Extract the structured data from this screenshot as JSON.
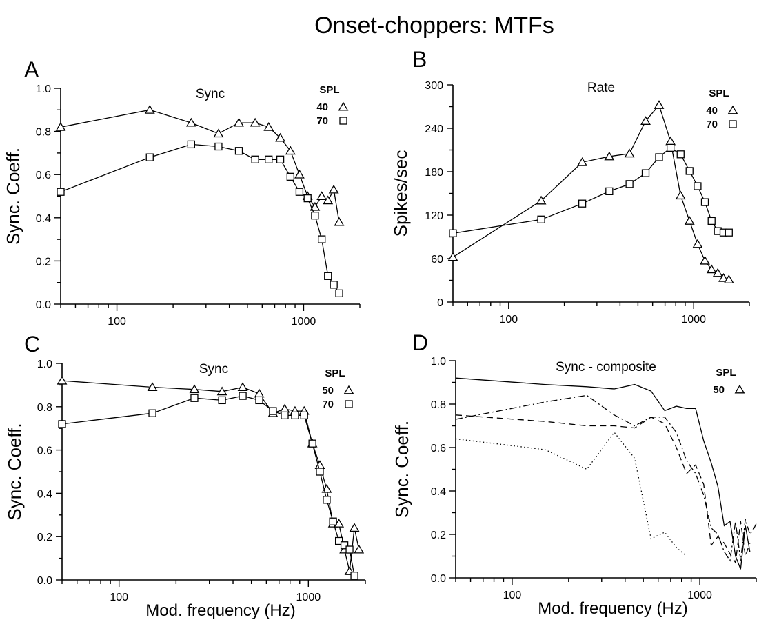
{
  "figure": {
    "title": "Onset-choppers: MTFs"
  },
  "chart_data": [
    {
      "panel": "A",
      "type": "line",
      "title": "Sync",
      "xscale": "log",
      "xlim": [
        50,
        2000
      ],
      "xticks": [
        100,
        1000
      ],
      "ylim": [
        0,
        1
      ],
      "yticks": [
        0,
        0.2,
        0.4,
        0.6,
        0.8,
        1
      ],
      "ytick_labels": [
        "0.0",
        "0.2",
        "0.4",
        "0.6",
        "0.8",
        "1.0"
      ],
      "xlabel": "",
      "ylabel": "Sync. Coeff.",
      "legend_title": "SPL",
      "legend_position": "top-right",
      "series": [
        {
          "name": "40",
          "marker": "triangle",
          "style": "solid",
          "x": [
            50,
            150,
            250,
            350,
            450,
            550,
            650,
            750,
            850,
            950,
            1050,
            1150,
            1250,
            1350,
            1450,
            1550
          ],
          "y": [
            0.82,
            0.9,
            0.84,
            0.79,
            0.84,
            0.84,
            0.82,
            0.77,
            0.71,
            0.6,
            0.5,
            0.45,
            0.5,
            0.48,
            0.53,
            0.38
          ]
        },
        {
          "name": "70",
          "marker": "square",
          "style": "solid",
          "x": [
            50,
            150,
            250,
            350,
            450,
            550,
            650,
            750,
            850,
            950,
            1050,
            1150,
            1250,
            1350,
            1450,
            1550
          ],
          "y": [
            0.52,
            0.68,
            0.74,
            0.73,
            0.71,
            0.67,
            0.67,
            0.67,
            0.59,
            0.52,
            0.49,
            0.41,
            0.3,
            0.13,
            0.09,
            0.05
          ]
        }
      ]
    },
    {
      "panel": "B",
      "type": "line",
      "title": "Rate",
      "xscale": "log",
      "xlim": [
        50,
        2000
      ],
      "xticks": [
        100,
        1000
      ],
      "ylim": [
        0,
        300
      ],
      "yticks": [
        0,
        60,
        120,
        180,
        240,
        300
      ],
      "ytick_labels": [
        "0",
        "60",
        "120",
        "180",
        "240",
        "300"
      ],
      "xlabel": "",
      "ylabel": "Spikes/sec",
      "legend_title": "SPL",
      "legend_position": "top-right",
      "series": [
        {
          "name": "40",
          "marker": "triangle",
          "style": "solid",
          "x": [
            50,
            150,
            250,
            350,
            450,
            550,
            650,
            750,
            850,
            950,
            1050,
            1150,
            1250,
            1350,
            1450,
            1550
          ],
          "y": [
            62,
            140,
            193,
            201,
            205,
            250,
            272,
            222,
            147,
            112,
            80,
            57,
            45,
            40,
            33,
            31
          ]
        },
        {
          "name": "70",
          "marker": "square",
          "style": "solid",
          "x": [
            50,
            150,
            250,
            350,
            450,
            550,
            650,
            750,
            850,
            950,
            1050,
            1150,
            1250,
            1350,
            1450,
            1550
          ],
          "y": [
            95,
            114,
            136,
            153,
            163,
            178,
            200,
            213,
            204,
            181,
            160,
            138,
            112,
            98,
            96,
            96
          ]
        }
      ]
    },
    {
      "panel": "C",
      "type": "line",
      "title": "Sync",
      "xscale": "log",
      "xlim": [
        50,
        2000
      ],
      "xticks": [
        100,
        1000
      ],
      "ylim": [
        0,
        1
      ],
      "yticks": [
        0,
        0.2,
        0.4,
        0.6,
        0.8,
        1
      ],
      "ytick_labels": [
        "0.0",
        "0.2",
        "0.4",
        "0.6",
        "0.8",
        "1.0"
      ],
      "xlabel": "Mod. frequency (Hz)",
      "ylabel": "Sync. Coeff.",
      "legend_title": "SPL",
      "legend_position": "top-right",
      "series": [
        {
          "name": "50",
          "marker": "triangle",
          "style": "solid",
          "x": [
            50,
            150,
            250,
            350,
            450,
            550,
            650,
            750,
            850,
            950,
            1050,
            1150,
            1250,
            1350,
            1450,
            1550,
            1650,
            1750,
            1850
          ],
          "y": [
            0.92,
            0.89,
            0.88,
            0.87,
            0.89,
            0.86,
            0.77,
            0.79,
            0.78,
            0.78,
            0.63,
            0.53,
            0.42,
            0.26,
            0.26,
            0.14,
            0.04,
            0.24,
            0.14
          ]
        },
        {
          "name": "70",
          "marker": "square",
          "style": "solid",
          "x": [
            50,
            150,
            250,
            350,
            450,
            550,
            650,
            750,
            850,
            950,
            1050,
            1150,
            1250,
            1350,
            1450,
            1550,
            1650,
            1750
          ],
          "y": [
            0.72,
            0.77,
            0.84,
            0.83,
            0.85,
            0.83,
            0.78,
            0.76,
            0.76,
            0.76,
            0.63,
            0.5,
            0.37,
            0.27,
            0.18,
            0.16,
            0.14,
            0.02
          ]
        }
      ]
    },
    {
      "panel": "D",
      "type": "line",
      "title": "Sync - composite",
      "xscale": "log",
      "xlim": [
        50,
        2000
      ],
      "xticks": [
        100,
        1000
      ],
      "ylim": [
        0,
        1
      ],
      "yticks": [
        0,
        0.2,
        0.4,
        0.6,
        0.8,
        1
      ],
      "ytick_labels": [
        "0.0",
        "0.2",
        "0.4",
        "0.6",
        "0.8",
        "1.0"
      ],
      "xlabel": "Mod. frequency (Hz)",
      "ylabel": "Sync. Coeff.",
      "legend_title": "SPL",
      "legend_position": "top-right",
      "legend_entries": [
        {
          "name": "50",
          "marker": "triangle"
        }
      ],
      "series": [
        {
          "style": "solid",
          "x": [
            50,
            150,
            250,
            350,
            450,
            550,
            650,
            750,
            850,
            950,
            1050,
            1150,
            1250,
            1350,
            1450,
            1550,
            1650,
            1750,
            1850
          ],
          "y": [
            0.92,
            0.89,
            0.88,
            0.87,
            0.89,
            0.86,
            0.77,
            0.79,
            0.78,
            0.78,
            0.63,
            0.53,
            0.42,
            0.24,
            0.26,
            0.1,
            0.04,
            0.24,
            0.12
          ]
        },
        {
          "style": "dashdot",
          "x": [
            50,
            150,
            250,
            350,
            450,
            550,
            650,
            750,
            850,
            950,
            1050,
            1150,
            1250,
            1350,
            1450,
            1550,
            1650,
            1750,
            1850,
            1950,
            2000
          ],
          "y": [
            0.73,
            0.81,
            0.84,
            0.75,
            0.7,
            0.74,
            0.74,
            0.67,
            0.54,
            0.48,
            0.38,
            0.23,
            0.2,
            0.12,
            0.08,
            0.26,
            0.08,
            0.27,
            0.2,
            0.23,
            0.25
          ]
        },
        {
          "style": "dashed",
          "x": [
            50,
            150,
            250,
            350,
            450,
            550,
            650,
            750,
            850,
            950,
            1050,
            1150,
            1250,
            1350,
            1450,
            1550,
            1650,
            1750,
            1850
          ],
          "y": [
            0.75,
            0.72,
            0.7,
            0.7,
            0.69,
            0.74,
            0.71,
            0.6,
            0.48,
            0.52,
            0.43,
            0.15,
            0.19,
            0.16,
            0.11,
            0.07,
            0.26,
            0.1,
            0.16
          ]
        },
        {
          "style": "dotted",
          "x": [
            50,
            150,
            250,
            350,
            450,
            550,
            650,
            750,
            850
          ],
          "y": [
            0.64,
            0.59,
            0.5,
            0.67,
            0.55,
            0.18,
            0.21,
            0.14,
            0.1
          ]
        }
      ]
    }
  ]
}
